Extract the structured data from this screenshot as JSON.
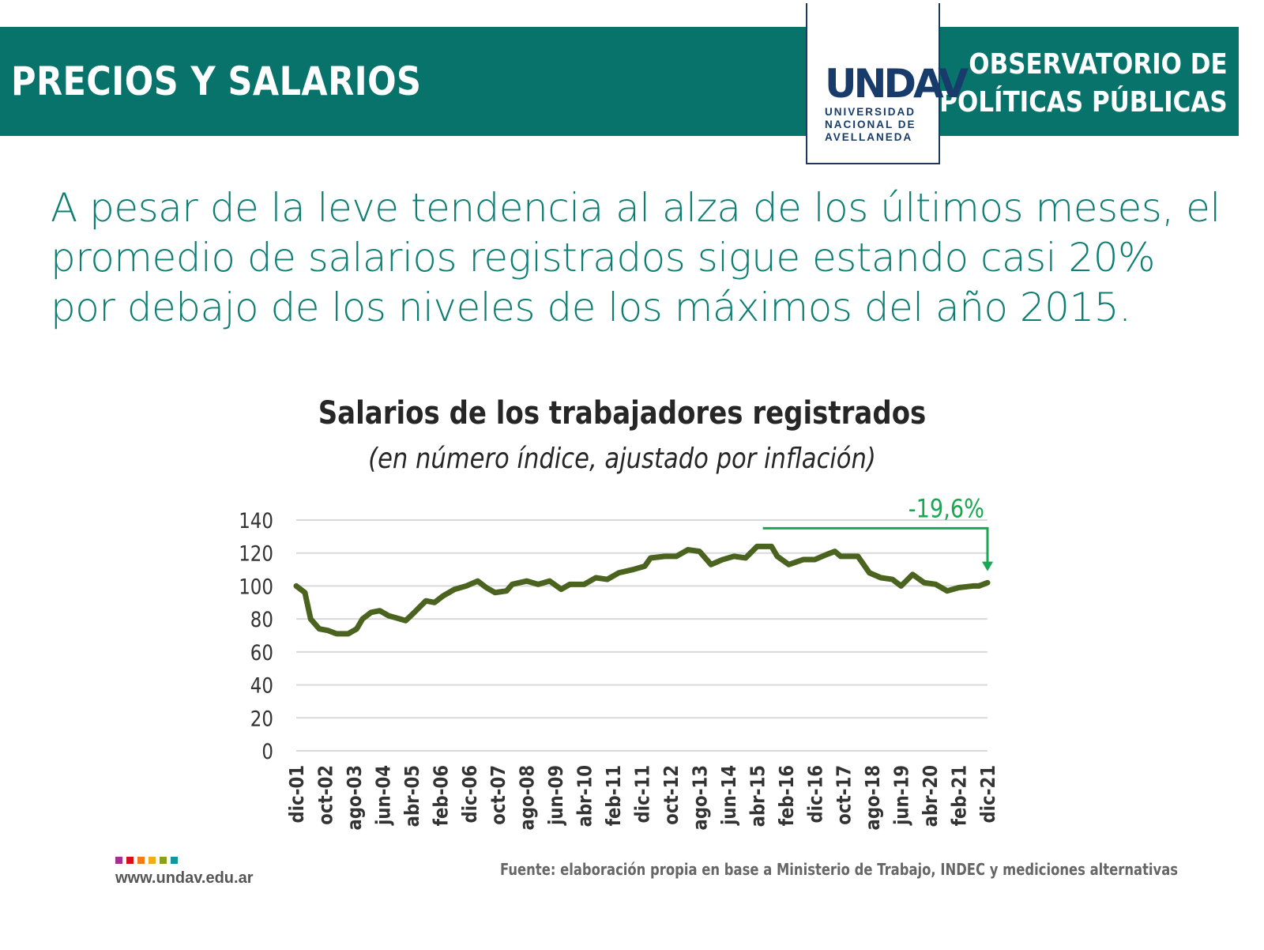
{
  "header": {
    "section_title": "PRECIOS Y SALARIOS",
    "observatory_line1": "OBSERVATORIO DE",
    "observatory_line2": "POLÍTICAS PÚBLICAS"
  },
  "logo": {
    "mark": "UNDAV",
    "line1": "UNIVERSIDAD",
    "line2": "NACIONAL DE",
    "line3": "AVELLANEDA"
  },
  "headline": "A pesar de la leve tendencia al alza de los últimos meses, el promedio de salarios registrados sigue estando casi 20% por debajo de los niveles de los máximos del año 2015.",
  "footer": {
    "url": "www.undav.edu.ar",
    "source": "Fuente: elaboración propia en base a Ministerio de Trabajo, INDEC y mediciones alternativas",
    "dot_colors": [
      "#a3308f",
      "#d4101f",
      "#f07c12",
      "#f2ac16",
      "#8aa01d",
      "#14969d"
    ]
  },
  "chart_data": {
    "type": "line",
    "title": "Salarios de los trabajadores registrados",
    "subtitle": "(en número índice, ajustado por inflación)",
    "xlabel": "",
    "ylabel": "",
    "ylim": [
      0,
      140
    ],
    "yticks": [
      0,
      20,
      40,
      60,
      80,
      100,
      120,
      140
    ],
    "x_unit": "months since dic-01",
    "xticks": [
      "dic-01",
      "oct-02",
      "ago-03",
      "jun-04",
      "abr-05",
      "feb-06",
      "dic-06",
      "oct-07",
      "ago-08",
      "jun-09",
      "abr-10",
      "feb-11",
      "dic-11",
      "oct-12",
      "ago-13",
      "jun-14",
      "abr-15",
      "feb-16",
      "dic-16",
      "oct-17",
      "ago-18",
      "jun-19",
      "abr-20",
      "feb-21",
      "dic-21"
    ],
    "xtick_step_months": 10,
    "grid": true,
    "series": [
      {
        "name": "Salarios registrados",
        "color": "#4a6420",
        "points": [
          [
            0,
            100
          ],
          [
            3,
            96
          ],
          [
            5,
            80
          ],
          [
            8,
            74
          ],
          [
            11,
            73
          ],
          [
            14,
            71
          ],
          [
            18,
            71
          ],
          [
            21,
            74
          ],
          [
            23,
            80
          ],
          [
            26,
            84
          ],
          [
            29,
            85
          ],
          [
            32,
            82
          ],
          [
            34,
            81
          ],
          [
            38,
            79
          ],
          [
            41,
            84
          ],
          [
            45,
            91
          ],
          [
            48,
            90
          ],
          [
            51,
            94
          ],
          [
            55,
            98
          ],
          [
            59,
            100
          ],
          [
            63,
            103
          ],
          [
            66,
            99
          ],
          [
            69,
            96
          ],
          [
            73,
            97
          ],
          [
            75,
            101
          ],
          [
            80,
            103
          ],
          [
            84,
            101
          ],
          [
            88,
            103
          ],
          [
            92,
            98
          ],
          [
            95,
            101
          ],
          [
            100,
            101
          ],
          [
            104,
            105
          ],
          [
            108,
            104
          ],
          [
            112,
            108
          ],
          [
            117,
            110
          ],
          [
            121,
            112
          ],
          [
            123,
            117
          ],
          [
            128,
            118
          ],
          [
            132,
            118
          ],
          [
            136,
            122
          ],
          [
            140,
            121
          ],
          [
            144,
            113
          ],
          [
            148,
            116
          ],
          [
            152,
            118
          ],
          [
            156,
            117
          ],
          [
            160,
            124
          ],
          [
            165,
            124
          ],
          [
            167,
            118
          ],
          [
            171,
            113
          ],
          [
            176,
            116
          ],
          [
            180,
            116
          ],
          [
            184,
            119
          ],
          [
            187,
            121
          ],
          [
            189,
            118
          ],
          [
            195,
            118
          ],
          [
            199,
            108
          ],
          [
            203,
            105
          ],
          [
            207,
            104
          ],
          [
            210,
            100
          ],
          [
            214,
            107
          ],
          [
            218,
            102
          ],
          [
            222,
            101
          ],
          [
            226,
            97
          ],
          [
            230,
            99
          ],
          [
            235,
            100
          ],
          [
            237,
            100
          ],
          [
            240,
            102
          ]
        ]
      }
    ],
    "annotation": {
      "text": "-19,6%",
      "color": "#17a851",
      "from_month": 162,
      "level": 135,
      "to_value": 110
    }
  }
}
